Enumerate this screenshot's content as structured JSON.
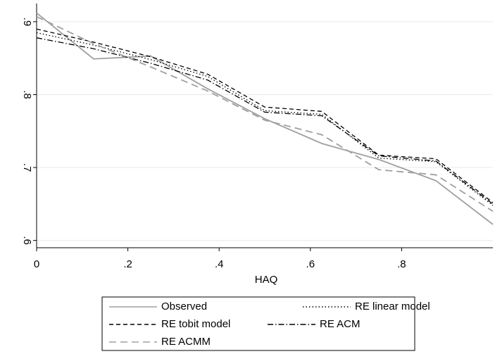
{
  "chart_data": {
    "type": "line",
    "x_label": "HAQ",
    "x": [
      0,
      0.125,
      0.25,
      0.375,
      0.5,
      0.625,
      0.75,
      0.875,
      1
    ],
    "series": [
      {
        "name": "Observed",
        "color": "#a0a0a0",
        "dash": "none",
        "values": [
          0.912,
          0.849,
          0.853,
          0.808,
          0.767,
          0.733,
          0.711,
          0.682,
          0.622
        ]
      },
      {
        "name": "RE linear model",
        "color": "#000000",
        "dash": "1.5 3",
        "values": [
          0.885,
          0.868,
          0.848,
          0.825,
          0.778,
          0.773,
          0.713,
          0.708,
          0.648
        ]
      },
      {
        "name": "RE tobit model",
        "color": "#000000",
        "dash": "6 4",
        "values": [
          0.89,
          0.872,
          0.852,
          0.828,
          0.783,
          0.777,
          0.717,
          0.712,
          0.652
        ]
      },
      {
        "name": "RE ACM",
        "color": "#000000",
        "dash": "8 3 1.5 3",
        "values": [
          0.878,
          0.863,
          0.843,
          0.82,
          0.776,
          0.771,
          0.716,
          0.709,
          0.65
        ]
      },
      {
        "name": "RE ACMM",
        "color": "#a0a0a0",
        "dash": "10 6",
        "values": [
          0.907,
          0.87,
          0.838,
          0.805,
          0.765,
          0.745,
          0.697,
          0.69,
          0.64
        ]
      }
    ],
    "xlim": [
      0,
      1
    ],
    "ylim": [
      0.59,
      0.925
    ],
    "xticks": [
      0,
      {
        "value": 0.2,
        "label": ".2"
      },
      {
        "value": 0.4,
        "label": ".4"
      },
      {
        "value": 0.6,
        "label": ".6"
      },
      {
        "value": 0.8,
        "label": ".8"
      }
    ],
    "yticks": [
      {
        "value": 0.6,
        "label": ".6"
      },
      {
        "value": 0.7,
        "label": ".7"
      },
      {
        "value": 0.8,
        "label": ".8"
      },
      {
        "value": 0.9,
        "label": ".9"
      }
    ],
    "grid": true
  }
}
